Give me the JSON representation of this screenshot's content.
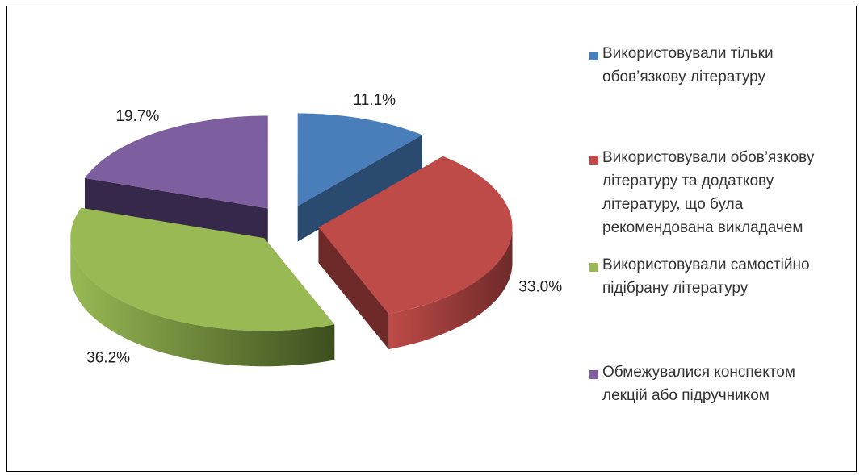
{
  "chart_data": {
    "type": "pie",
    "series": [
      {
        "label": "Використовували тільки обов’язкову літературу",
        "value": 11.1,
        "display": "11.1%",
        "color": "#4a7ebb",
        "side": "#355d8c",
        "dark": "#2b4a70"
      },
      {
        "label": "Використовували обов’язкову літературу та додаткову літературу, що була рекомендована викладачем",
        "value": 33.0,
        "display": "33.0%",
        "color": "#be4b48",
        "side": "#8f3735",
        "dark": "#6e2a29"
      },
      {
        "label": "Використовували самостійно підібрану літературу",
        "value": 36.2,
        "display": "36.2%",
        "color": "#98b954",
        "side": "#5f7a2e",
        "dark": "#3d4f1e"
      },
      {
        "label": "Обмежувалися конспектом лекцій або підручником",
        "value": 19.7,
        "display": "19.7%",
        "color": "#7d5fa0",
        "side": "#4f3b68",
        "dark": "#36284a"
      }
    ],
    "legend_position": "right",
    "legend": [
      [
        "Використовували тільки",
        "обов’язкову літературу"
      ],
      [
        "Використовували обов’язкову",
        "літературу та додаткову",
        "літературу, що була",
        "рекомендована викладачем"
      ],
      [
        "Використовували самостійно",
        "підібрану літературу"
      ],
      [
        "Обмежувалися конспектом",
        "лекцій або підручником"
      ]
    ]
  }
}
